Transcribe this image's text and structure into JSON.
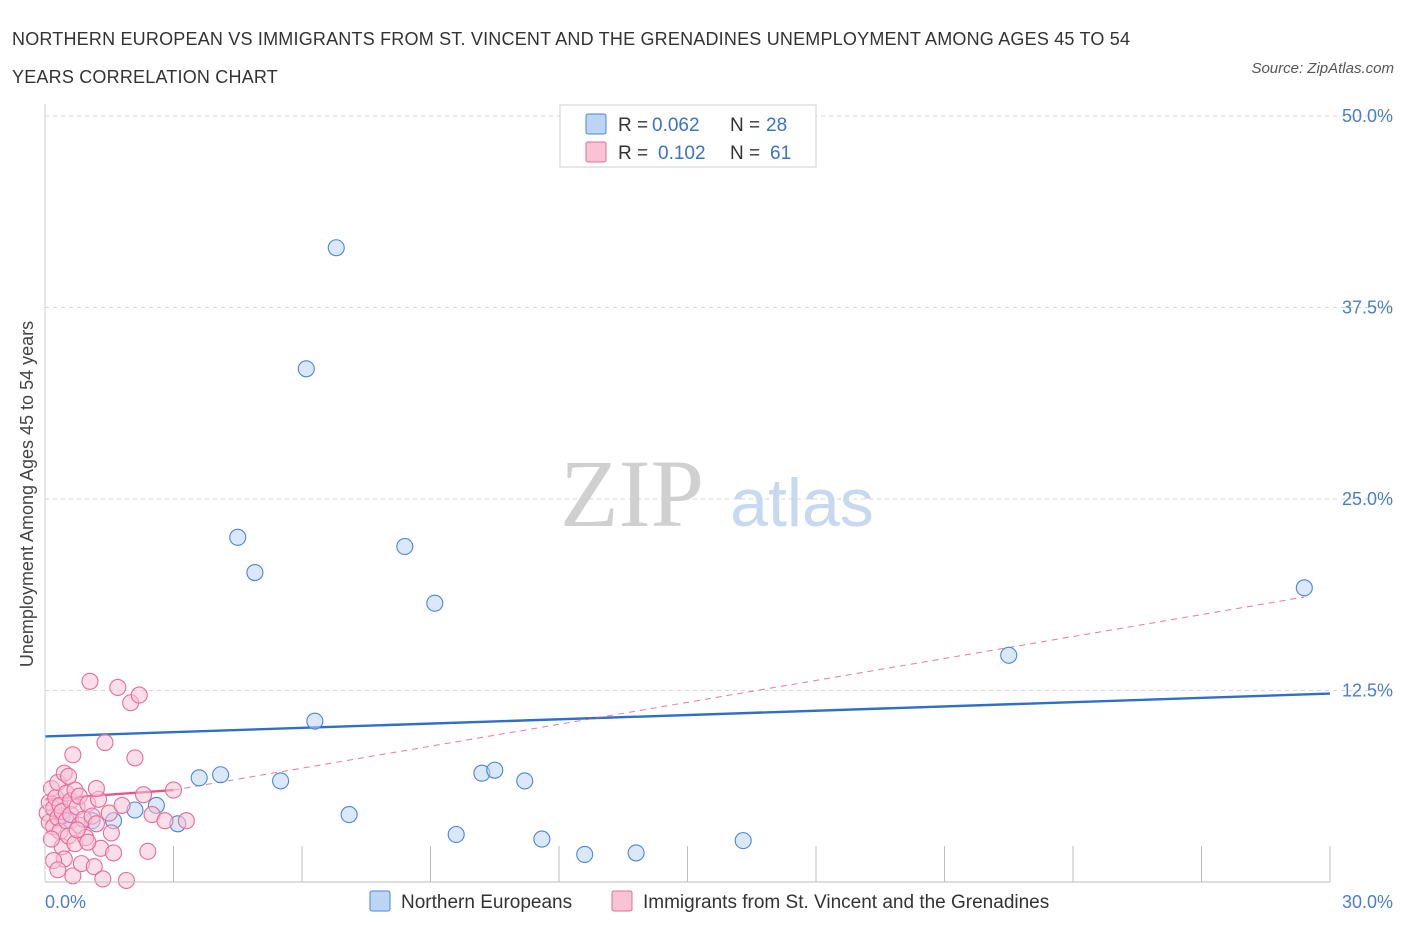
{
  "title": "NORTHERN EUROPEAN VS IMMIGRANTS FROM ST. VINCENT AND THE GRENADINES UNEMPLOYMENT AMONG AGES 45 TO 54 YEARS CORRELATION CHART",
  "source": "Source: ZipAtlas.com",
  "watermark": {
    "zip": "ZIP",
    "atlas": "atlas"
  },
  "colors": {
    "blue": "#4a86d8",
    "blue_fill": "#bcd5f5",
    "blue_line": "#2f6fc9",
    "pink": "#e66c98",
    "pink_fill": "#f7c3d5",
    "pink_line": "#e4568a",
    "grid": "#d5d5d5",
    "tick_text": "#4a7fc8"
  },
  "legend": {
    "rows": [
      {
        "r_label": "R =",
        "r_value": "0.062",
        "n_label": "N =",
        "n_value": "28",
        "series": "blue"
      },
      {
        "r_label": "R =",
        "r_value": "0.102",
        "n_label": "N =",
        "n_value": "61",
        "series": "pink"
      }
    ]
  },
  "chart_data": {
    "type": "scatter",
    "title": "NORTHERN EUROPEAN VS IMMIGRANTS FROM ST. VINCENT AND THE GRENADINES UNEMPLOYMENT AMONG AGES 45 TO 54 YEARS CORRELATION CHART",
    "xlabel": "",
    "ylabel": "Unemployment Among Ages 45 to 54 years",
    "xlim": [
      0,
      30
    ],
    "ylim": [
      0,
      50
    ],
    "x_tick_labels": [
      "0.0%",
      "30.0%"
    ],
    "y_ticks": [
      12.5,
      25,
      37.5,
      50
    ],
    "y_tick_labels": [
      "12.5%",
      "25.0%",
      "37.5%",
      "50.0%"
    ],
    "grid": true,
    "legend_position": "top-center",
    "series": [
      {
        "name": "Northern Europeans",
        "color": "blue",
        "trend": {
          "x": [
            0,
            30
          ],
          "y": [
            9.5,
            12.3
          ],
          "style": "solid"
        },
        "points": [
          [
            0.6,
            4.0
          ],
          [
            1.1,
            4.0
          ],
          [
            1.6,
            4.0
          ],
          [
            2.1,
            4.7
          ],
          [
            2.6,
            5.0
          ],
          [
            3.1,
            3.8
          ],
          [
            3.6,
            6.8
          ],
          [
            4.1,
            7.0
          ],
          [
            4.5,
            22.5
          ],
          [
            4.9,
            20.2
          ],
          [
            5.5,
            6.6
          ],
          [
            6.1,
            33.5
          ],
          [
            6.3,
            10.5
          ],
          [
            6.8,
            41.4
          ],
          [
            7.1,
            4.4
          ],
          [
            8.4,
            21.9
          ],
          [
            9.1,
            18.2
          ],
          [
            9.6,
            3.1
          ],
          [
            10.2,
            7.1
          ],
          [
            10.5,
            7.3
          ],
          [
            11.2,
            6.6
          ],
          [
            11.6,
            2.8
          ],
          [
            12.6,
            1.8
          ],
          [
            13.8,
            1.9
          ],
          [
            16.3,
            2.7
          ],
          [
            22.5,
            14.8
          ],
          [
            29.4,
            19.2
          ],
          [
            0.4,
            4.3
          ]
        ]
      },
      {
        "name": "Immigrants from St. Vincent and the Grenadines",
        "color": "pink",
        "trend": {
          "x": [
            0,
            3
          ],
          "y": [
            5.4,
            6.0
          ],
          "style": "solid",
          "extended": {
            "x": [
              3,
              29.4
            ],
            "y": [
              6.0,
              18.6
            ],
            "style": "dashed"
          }
        },
        "points": [
          [
            0.05,
            4.5
          ],
          [
            0.1,
            5.2
          ],
          [
            0.1,
            3.9
          ],
          [
            0.15,
            6.1
          ],
          [
            0.2,
            4.8
          ],
          [
            0.2,
            3.6
          ],
          [
            0.25,
            5.5
          ],
          [
            0.3,
            4.2
          ],
          [
            0.3,
            6.5
          ],
          [
            0.35,
            3.3
          ],
          [
            0.35,
            5.0
          ],
          [
            0.4,
            4.6
          ],
          [
            0.4,
            2.3
          ],
          [
            0.45,
            7.1
          ],
          [
            0.45,
            1.5
          ],
          [
            0.5,
            5.8
          ],
          [
            0.5,
            4.0
          ],
          [
            0.55,
            3.0
          ],
          [
            0.6,
            5.3
          ],
          [
            0.6,
            4.4
          ],
          [
            0.65,
            0.4
          ],
          [
            0.7,
            6.0
          ],
          [
            0.7,
            2.5
          ],
          [
            0.75,
            4.9
          ],
          [
            0.8,
            3.7
          ],
          [
            0.8,
            5.6
          ],
          [
            0.85,
            1.2
          ],
          [
            0.9,
            4.1
          ],
          [
            0.95,
            2.9
          ],
          [
            1.0,
            5.1
          ],
          [
            1.05,
            13.1
          ],
          [
            1.1,
            4.3
          ],
          [
            1.15,
            1.0
          ],
          [
            1.2,
            3.8
          ],
          [
            1.25,
            5.4
          ],
          [
            1.3,
            2.2
          ],
          [
            1.35,
            0.2
          ],
          [
            1.4,
            9.1
          ],
          [
            1.5,
            4.5
          ],
          [
            1.55,
            3.2
          ],
          [
            1.6,
            1.9
          ],
          [
            1.7,
            12.7
          ],
          [
            1.8,
            5.0
          ],
          [
            1.9,
            0.1
          ],
          [
            2.0,
            11.7
          ],
          [
            2.1,
            8.1
          ],
          [
            2.2,
            12.2
          ],
          [
            2.3,
            5.7
          ],
          [
            2.5,
            4.4
          ],
          [
            0.2,
            1.4
          ],
          [
            0.3,
            0.8
          ],
          [
            0.55,
            6.9
          ],
          [
            0.65,
            8.3
          ],
          [
            0.75,
            3.4
          ],
          [
            1.0,
            2.6
          ],
          [
            1.2,
            6.1
          ],
          [
            2.4,
            2.0
          ],
          [
            2.8,
            4.0
          ],
          [
            3.0,
            6.0
          ],
          [
            3.3,
            4.0
          ],
          [
            0.15,
            2.8
          ]
        ]
      }
    ]
  },
  "bottom_legend": [
    {
      "label": "Northern Europeans",
      "series": "blue"
    },
    {
      "label": "Immigrants from St. Vincent and the Grenadines",
      "series": "pink"
    }
  ]
}
